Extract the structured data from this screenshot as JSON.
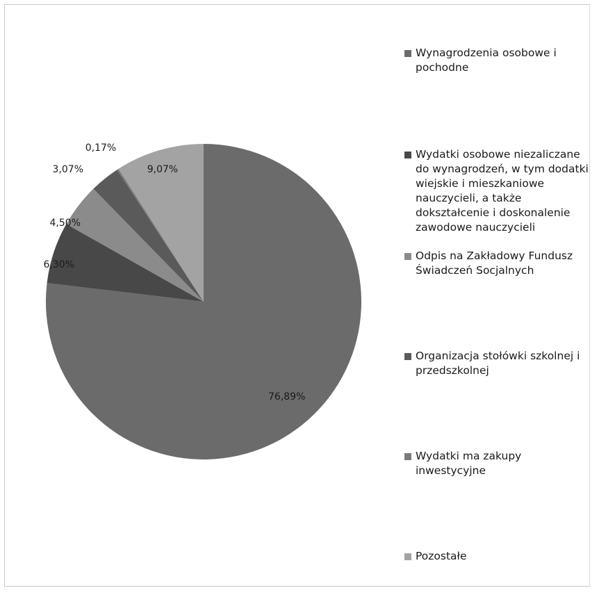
{
  "chart_data": {
    "type": "pie",
    "categories": [
      "Wynagrodzenia osobowe i pochodne",
      "Wydatki osobowe niezaliczane do wynagrodzeń, w tym dodatki wiejskie i mieszkaniowe nauczycieli, a także dokształcenie i doskonalenie zawodowe nauczycieli",
      "Odpis na Zakładowy Fundusz Świadczeń Socjalnych",
      "Organizacja stołówki szkolnej i przedszkolnej",
      "Wydatki ma zakupy inwestycyjne",
      "Pozostałe"
    ],
    "values": [
      76.89,
      6.3,
      4.5,
      3.07,
      0.17,
      9.07
    ],
    "value_labels": [
      "76,89%",
      "6,30%",
      "4,50%",
      "3,07%",
      "0,17%",
      "9,07%"
    ],
    "colors": [
      "#6b6b6b",
      "#484848",
      "#8b8b8b",
      "#5a5a5a",
      "#7a7a7a",
      "#a3a3a3"
    ],
    "legend_placement": "right",
    "title": ""
  }
}
